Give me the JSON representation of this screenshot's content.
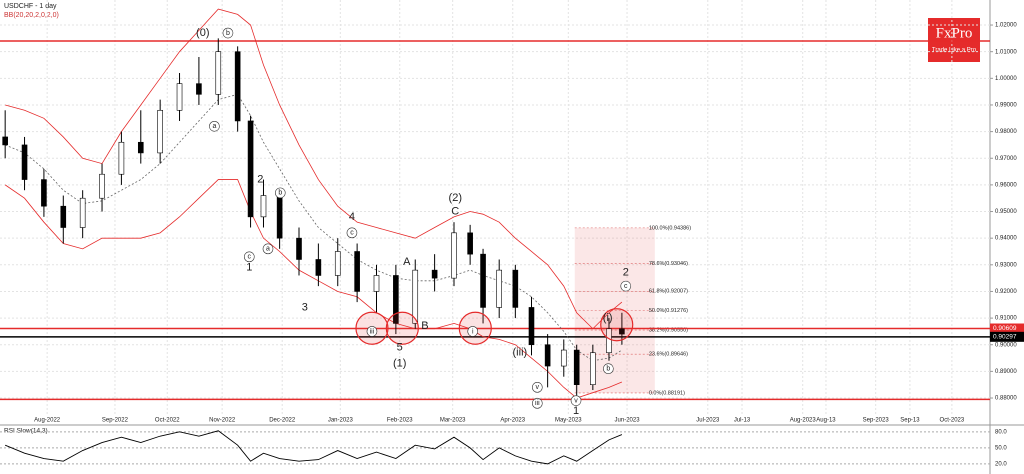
{
  "header": {
    "symbol": "USDCHF - 1 day",
    "indicator": "BB(20,20,2,0,2,0)",
    "logo": "FxPro",
    "tagline": "Trade Like a Pro"
  },
  "chart_data": {
    "type": "candlestick",
    "xlim": [
      -0.73,
      14.6
    ],
    "ylim": [
      0.874,
      1.0294
    ],
    "xticks": [
      {
        "value": 0,
        "label": "Aug-2022"
      },
      {
        "value": 1.05,
        "label": "Sep-2022"
      },
      {
        "value": 1.86,
        "label": "Oct-2022"
      },
      {
        "value": 2.71,
        "label": "Nov-2022"
      },
      {
        "value": 3.64,
        "label": "Dec-2022"
      },
      {
        "value": 4.54,
        "label": "Jan-2023"
      },
      {
        "value": 5.46,
        "label": "Feb-2023"
      },
      {
        "value": 6.28,
        "label": "Mar-2023"
      },
      {
        "value": 7.21,
        "label": "Apr-2023"
      },
      {
        "value": 8.07,
        "label": "May-2023"
      },
      {
        "value": 8.98,
        "label": "Jun-2023"
      },
      {
        "value": 10.23,
        "label": "Jul-2023"
      },
      {
        "value": 10.76,
        "label": "Jul-13"
      },
      {
        "value": 11.7,
        "label": "Aug-2023"
      },
      {
        "value": 12.06,
        "label": "Aug-13"
      },
      {
        "value": 12.83,
        "label": "Sep-2023"
      },
      {
        "value": 13.36,
        "label": "Sep-13"
      },
      {
        "value": 14.01,
        "label": "Oct-2023"
      }
    ],
    "yticks": [
      {
        "value": 0.88,
        "label": "0.88000"
      },
      {
        "value": 0.89,
        "label": "0.89000"
      },
      {
        "value": 0.9,
        "label": "0.90000"
      },
      {
        "value": 0.91,
        "label": "0.91000"
      },
      {
        "value": 0.92,
        "label": "0.92000"
      },
      {
        "value": 0.93,
        "label": "0.93000"
      },
      {
        "value": 0.94,
        "label": "0.94000"
      },
      {
        "value": 0.95,
        "label": "0.95000"
      },
      {
        "value": 0.96,
        "label": "0.96000"
      },
      {
        "value": 0.97,
        "label": "0.97000"
      },
      {
        "value": 0.98,
        "label": "0.98000"
      },
      {
        "value": 0.99,
        "label": "0.99000"
      },
      {
        "value": 1.0,
        "label": "1.00000"
      },
      {
        "value": 1.01,
        "label": "1.01000"
      },
      {
        "value": 1.02,
        "label": "1.02000"
      }
    ],
    "x": [
      -0.65,
      -0.35,
      -0.05,
      0.25,
      0.55,
      0.85,
      1.15,
      1.45,
      1.75,
      2.05,
      2.35,
      2.65,
      2.95,
      3.15,
      3.35,
      3.6,
      3.9,
      4.2,
      4.5,
      4.8,
      5.1,
      5.4,
      5.7,
      6.0,
      6.3,
      6.55,
      6.75,
      7.0,
      7.25,
      7.5,
      7.75,
      8.0,
      8.2,
      8.45,
      8.7,
      8.9
    ],
    "open": [
      0.978,
      0.975,
      0.962,
      0.952,
      0.944,
      0.955,
      0.964,
      0.976,
      0.972,
      0.988,
      0.998,
      0.994,
      1.01,
      0.984,
      0.948,
      0.956,
      0.94,
      0.932,
      0.926,
      0.935,
      0.92,
      0.926,
      0.908,
      0.928,
      0.925,
      0.942,
      0.934,
      0.914,
      0.928,
      0.914,
      0.9,
      0.892,
      0.898,
      0.885,
      0.897,
      0.906
    ],
    "high": [
      0.988,
      0.978,
      0.966,
      0.956,
      0.958,
      0.968,
      0.98,
      0.988,
      0.992,
      1.002,
      1.008,
      1.015,
      1.012,
      0.986,
      0.962,
      0.958,
      0.944,
      0.938,
      0.94,
      0.938,
      0.93,
      0.93,
      0.932,
      0.934,
      0.946,
      0.945,
      0.936,
      0.932,
      0.93,
      0.918,
      0.904,
      0.902,
      0.9,
      0.9,
      0.91,
      0.912
    ],
    "low": [
      0.97,
      0.958,
      0.948,
      0.938,
      0.94,
      0.95,
      0.96,
      0.968,
      0.968,
      0.984,
      0.99,
      0.99,
      0.98,
      0.944,
      0.944,
      0.936,
      0.926,
      0.922,
      0.922,
      0.916,
      0.912,
      0.904,
      0.906,
      0.92,
      0.922,
      0.93,
      0.908,
      0.91,
      0.91,
      0.896,
      0.884,
      0.888,
      0.881,
      0.883,
      0.894,
      0.9
    ],
    "close": [
      0.975,
      0.962,
      0.952,
      0.944,
      0.955,
      0.964,
      0.976,
      0.972,
      0.988,
      0.998,
      0.994,
      1.01,
      0.984,
      0.948,
      0.956,
      0.94,
      0.932,
      0.926,
      0.935,
      0.92,
      0.926,
      0.908,
      0.928,
      0.925,
      0.942,
      0.934,
      0.914,
      0.928,
      0.914,
      0.9,
      0.892,
      0.898,
      0.885,
      0.897,
      0.906,
      0.904
    ],
    "bands": {
      "upper": [
        0.99,
        0.988,
        0.985,
        0.978,
        0.97,
        0.968,
        0.98,
        0.99,
        1.0,
        1.01,
        1.018,
        1.026,
        1.024,
        1.02,
        1.005,
        0.99,
        0.975,
        0.962,
        0.952,
        0.946,
        0.944,
        0.942,
        0.94,
        0.944,
        0.948,
        0.95,
        0.949,
        0.946,
        0.94,
        0.935,
        0.93,
        0.922,
        0.912,
        0.906,
        0.912,
        0.916
      ],
      "middle": [
        0.975,
        0.972,
        0.966,
        0.958,
        0.953,
        0.954,
        0.958,
        0.962,
        0.968,
        0.976,
        0.984,
        0.992,
        0.994,
        0.986,
        0.976,
        0.966,
        0.954,
        0.944,
        0.938,
        0.932,
        0.928,
        0.925,
        0.924,
        0.924,
        0.926,
        0.928,
        0.926,
        0.924,
        0.922,
        0.918,
        0.912,
        0.905,
        0.898,
        0.894,
        0.895,
        0.898
      ],
      "lower": [
        0.96,
        0.955,
        0.946,
        0.938,
        0.936,
        0.94,
        0.94,
        0.94,
        0.942,
        0.948,
        0.955,
        0.962,
        0.962,
        0.95,
        0.94,
        0.935,
        0.928,
        0.924,
        0.92,
        0.918,
        0.912,
        0.908,
        0.906,
        0.906,
        0.908,
        0.906,
        0.903,
        0.902,
        0.9,
        0.895,
        0.89,
        0.884,
        0.88,
        0.882,
        0.884,
        0.886
      ],
      "color": "#e52b2b"
    },
    "hlines": [
      {
        "value": 1.014,
        "color": "#e52b2b"
      },
      {
        "value": 0.90609,
        "color": "#e52b2b",
        "label": "0.90609"
      },
      {
        "value": 0.90297,
        "color": "#000000",
        "label": "0.90297"
      },
      {
        "value": 0.8795,
        "color": "#e52b2b"
      }
    ],
    "fib": {
      "x": [
        8.17,
        9.41
      ],
      "levels": [
        {
          "value": 0.94386,
          "label": "100.0%(0.94386)"
        },
        {
          "value": 0.93046,
          "label": "78.6%(0.93046)"
        },
        {
          "value": 0.92007,
          "label": "61.8%(0.92007)"
        },
        {
          "value": 0.91276,
          "label": "50.0%(0.91276)"
        },
        {
          "value": 0.9055,
          "label": "38.2%(0.90550)"
        },
        {
          "value": 0.89646,
          "label": "23.6%(0.89646)"
        },
        {
          "value": 0.88191,
          "label": "0.0%(0.88191)"
        }
      ]
    },
    "waves": [
      {
        "text": "(0)",
        "x": 2.41,
        "y": 1.017,
        "circled": false
      },
      {
        "text": "b",
        "x": 2.8,
        "y": 1.017,
        "circled": true
      },
      {
        "text": "a",
        "x": 2.59,
        "y": 0.982,
        "circled": true
      },
      {
        "text": "2",
        "x": 3.3,
        "y": 0.962,
        "circled": false
      },
      {
        "text": "b",
        "x": 3.61,
        "y": 0.957,
        "circled": true
      },
      {
        "text": "a",
        "x": 3.42,
        "y": 0.936,
        "circled": true
      },
      {
        "text": "c",
        "x": 3.13,
        "y": 0.933,
        "circled": true
      },
      {
        "text": "1",
        "x": 3.13,
        "y": 0.929,
        "circled": false
      },
      {
        "text": "4",
        "x": 4.72,
        "y": 0.948,
        "circled": false
      },
      {
        "text": "c",
        "x": 4.72,
        "y": 0.942,
        "circled": true
      },
      {
        "text": "3",
        "x": 3.99,
        "y": 0.914,
        "circled": false
      },
      {
        "text": "A",
        "x": 5.57,
        "y": 0.931,
        "circled": false
      },
      {
        "text": "B",
        "x": 5.85,
        "y": 0.907,
        "circled": false
      },
      {
        "text": "5",
        "x": 5.46,
        "y": 0.899,
        "circled": false
      },
      {
        "text": "(1)",
        "x": 5.46,
        "y": 0.893,
        "circled": false
      },
      {
        "text": "(2)",
        "x": 6.32,
        "y": 0.955,
        "circled": false
      },
      {
        "text": "C",
        "x": 6.32,
        "y": 0.95,
        "circled": false
      },
      {
        "text": "iii",
        "x": 5.03,
        "y": 0.905,
        "circled": true
      },
      {
        "text": "i",
        "x": 6.59,
        "y": 0.905,
        "circled": true
      },
      {
        "text": "(iii)",
        "x": 7.32,
        "y": 0.897,
        "circled": false
      },
      {
        "text": "v",
        "x": 7.59,
        "y": 0.884,
        "circled": true
      },
      {
        "text": "iii",
        "x": 7.59,
        "y": 0.878,
        "circled": true
      },
      {
        "text": "v",
        "x": 8.19,
        "y": 0.879,
        "circled": true
      },
      {
        "text": "1",
        "x": 8.19,
        "y": 0.875,
        "circled": false
      },
      {
        "text": "2",
        "x": 8.96,
        "y": 0.927,
        "circled": false
      },
      {
        "text": "c",
        "x": 8.96,
        "y": 0.922,
        "circled": true
      },
      {
        "text": "(i)",
        "x": 8.68,
        "y": 0.91,
        "circled": false
      },
      {
        "text": "b",
        "x": 8.69,
        "y": 0.891,
        "circled": true
      }
    ],
    "highlights": [
      {
        "x": 5.03,
        "y": 0.9062
      },
      {
        "x": 5.5,
        "y": 0.9062
      },
      {
        "x": 6.63,
        "y": 0.9062
      },
      {
        "x": 8.82,
        "y": 0.9075
      }
    ],
    "rsi": {
      "title": "RSI Slow(14,3)",
      "ylim": [
        1,
        91
      ],
      "yticks": [
        {
          "value": 80,
          "label": "80.0"
        },
        {
          "value": 50,
          "label": "50.0"
        },
        {
          "value": 20,
          "label": "20.0"
        }
      ],
      "values": [
        55,
        40,
        30,
        25,
        45,
        60,
        70,
        60,
        72,
        80,
        72,
        82,
        55,
        25,
        40,
        30,
        25,
        28,
        45,
        30,
        42,
        30,
        55,
        48,
        70,
        50,
        28,
        50,
        35,
        25,
        20,
        35,
        25,
        45,
        65,
        75
      ]
    }
  }
}
